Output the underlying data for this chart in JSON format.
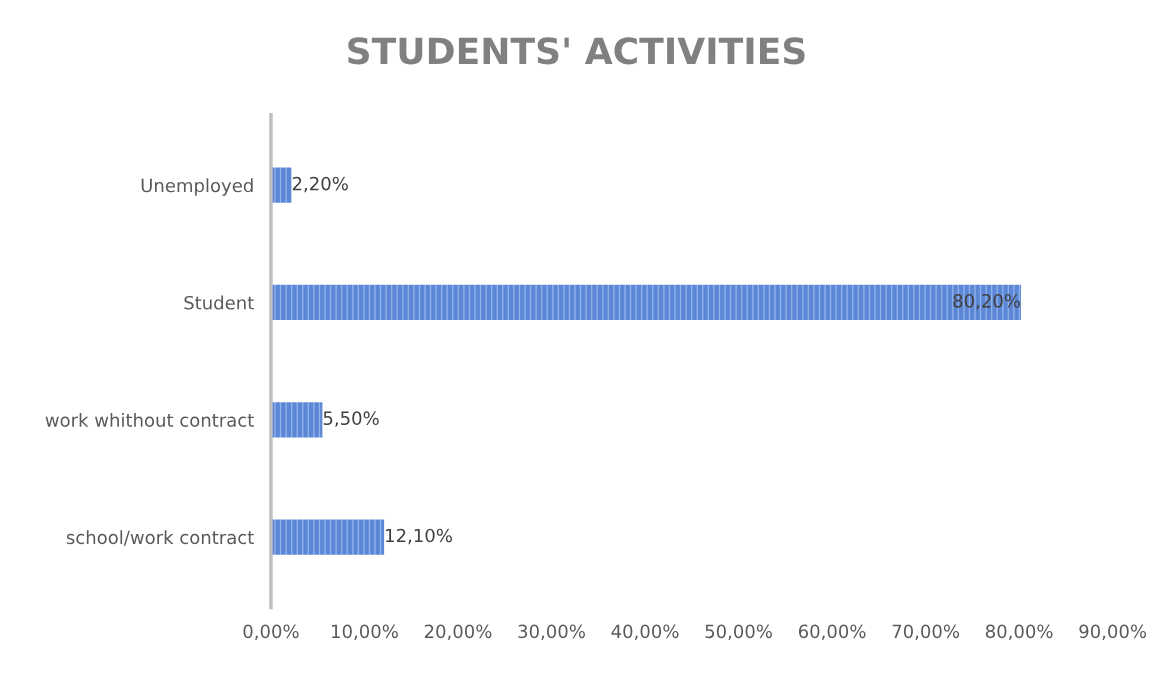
{
  "chart_data": {
    "type": "bar",
    "orientation": "horizontal",
    "title": "STUDENTS' ACTIVITIES",
    "categories": [
      "Unemployed",
      "Student",
      "work whithout contract",
      "school/work contract"
    ],
    "values": [
      2.2,
      80.2,
      5.5,
      12.1
    ],
    "value_labels": [
      "2,20%",
      "80,20%",
      "5,50%",
      "12,10%"
    ],
    "color": "#5b87d6",
    "xlim": [
      0,
      90
    ],
    "xticks": [
      {
        "value": 0,
        "label": "0,00%"
      },
      {
        "value": 10,
        "label": "10,00%"
      },
      {
        "value": 20,
        "label": "20,00%"
      },
      {
        "value": 30,
        "label": "30,00%"
      },
      {
        "value": 40,
        "label": "40,00%"
      },
      {
        "value": 50,
        "label": "50,00%"
      },
      {
        "value": 60,
        "label": "60,00%"
      },
      {
        "value": 70,
        "label": "70,00%"
      },
      {
        "value": 80,
        "label": "80,00%"
      },
      {
        "value": 90,
        "label": "90,00%"
      }
    ],
    "grid": false,
    "legend": false
  }
}
